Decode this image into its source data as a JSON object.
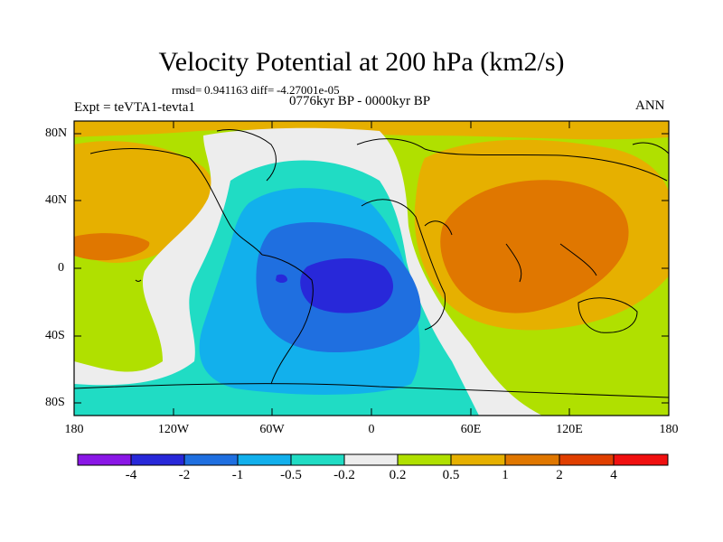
{
  "title": "Velocity Potential at 200 hPa (km2/s)",
  "stats": {
    "rmsd_label": "rmsd=",
    "rmsd": "0.941163",
    "diff_label": "diff=",
    "diff": "-4.27001e-05"
  },
  "experiment": "Expt = teVTA1-tevta1",
  "period": "0776kyr BP - 0000kyr BP",
  "season": "ANN",
  "lat_labels": [
    "80N",
    "40N",
    "0",
    "40S",
    "80S"
  ],
  "lon_labels": [
    "180",
    "120W",
    "60W",
    "0",
    "60E",
    "120E",
    "180"
  ],
  "colorbar": {
    "labels": [
      "-4",
      "-2",
      "-1",
      "-0.5",
      "-0.2",
      "0.2",
      "0.5",
      "1",
      "2",
      "4"
    ],
    "colors": [
      "#8a17e6",
      "#2828d9",
      "#1f6fe0",
      "#12b0ec",
      "#20dcc4",
      "#ededed",
      "#b0e000",
      "#e6b000",
      "#e07700",
      "#e03f00",
      "#f01010"
    ]
  }
}
